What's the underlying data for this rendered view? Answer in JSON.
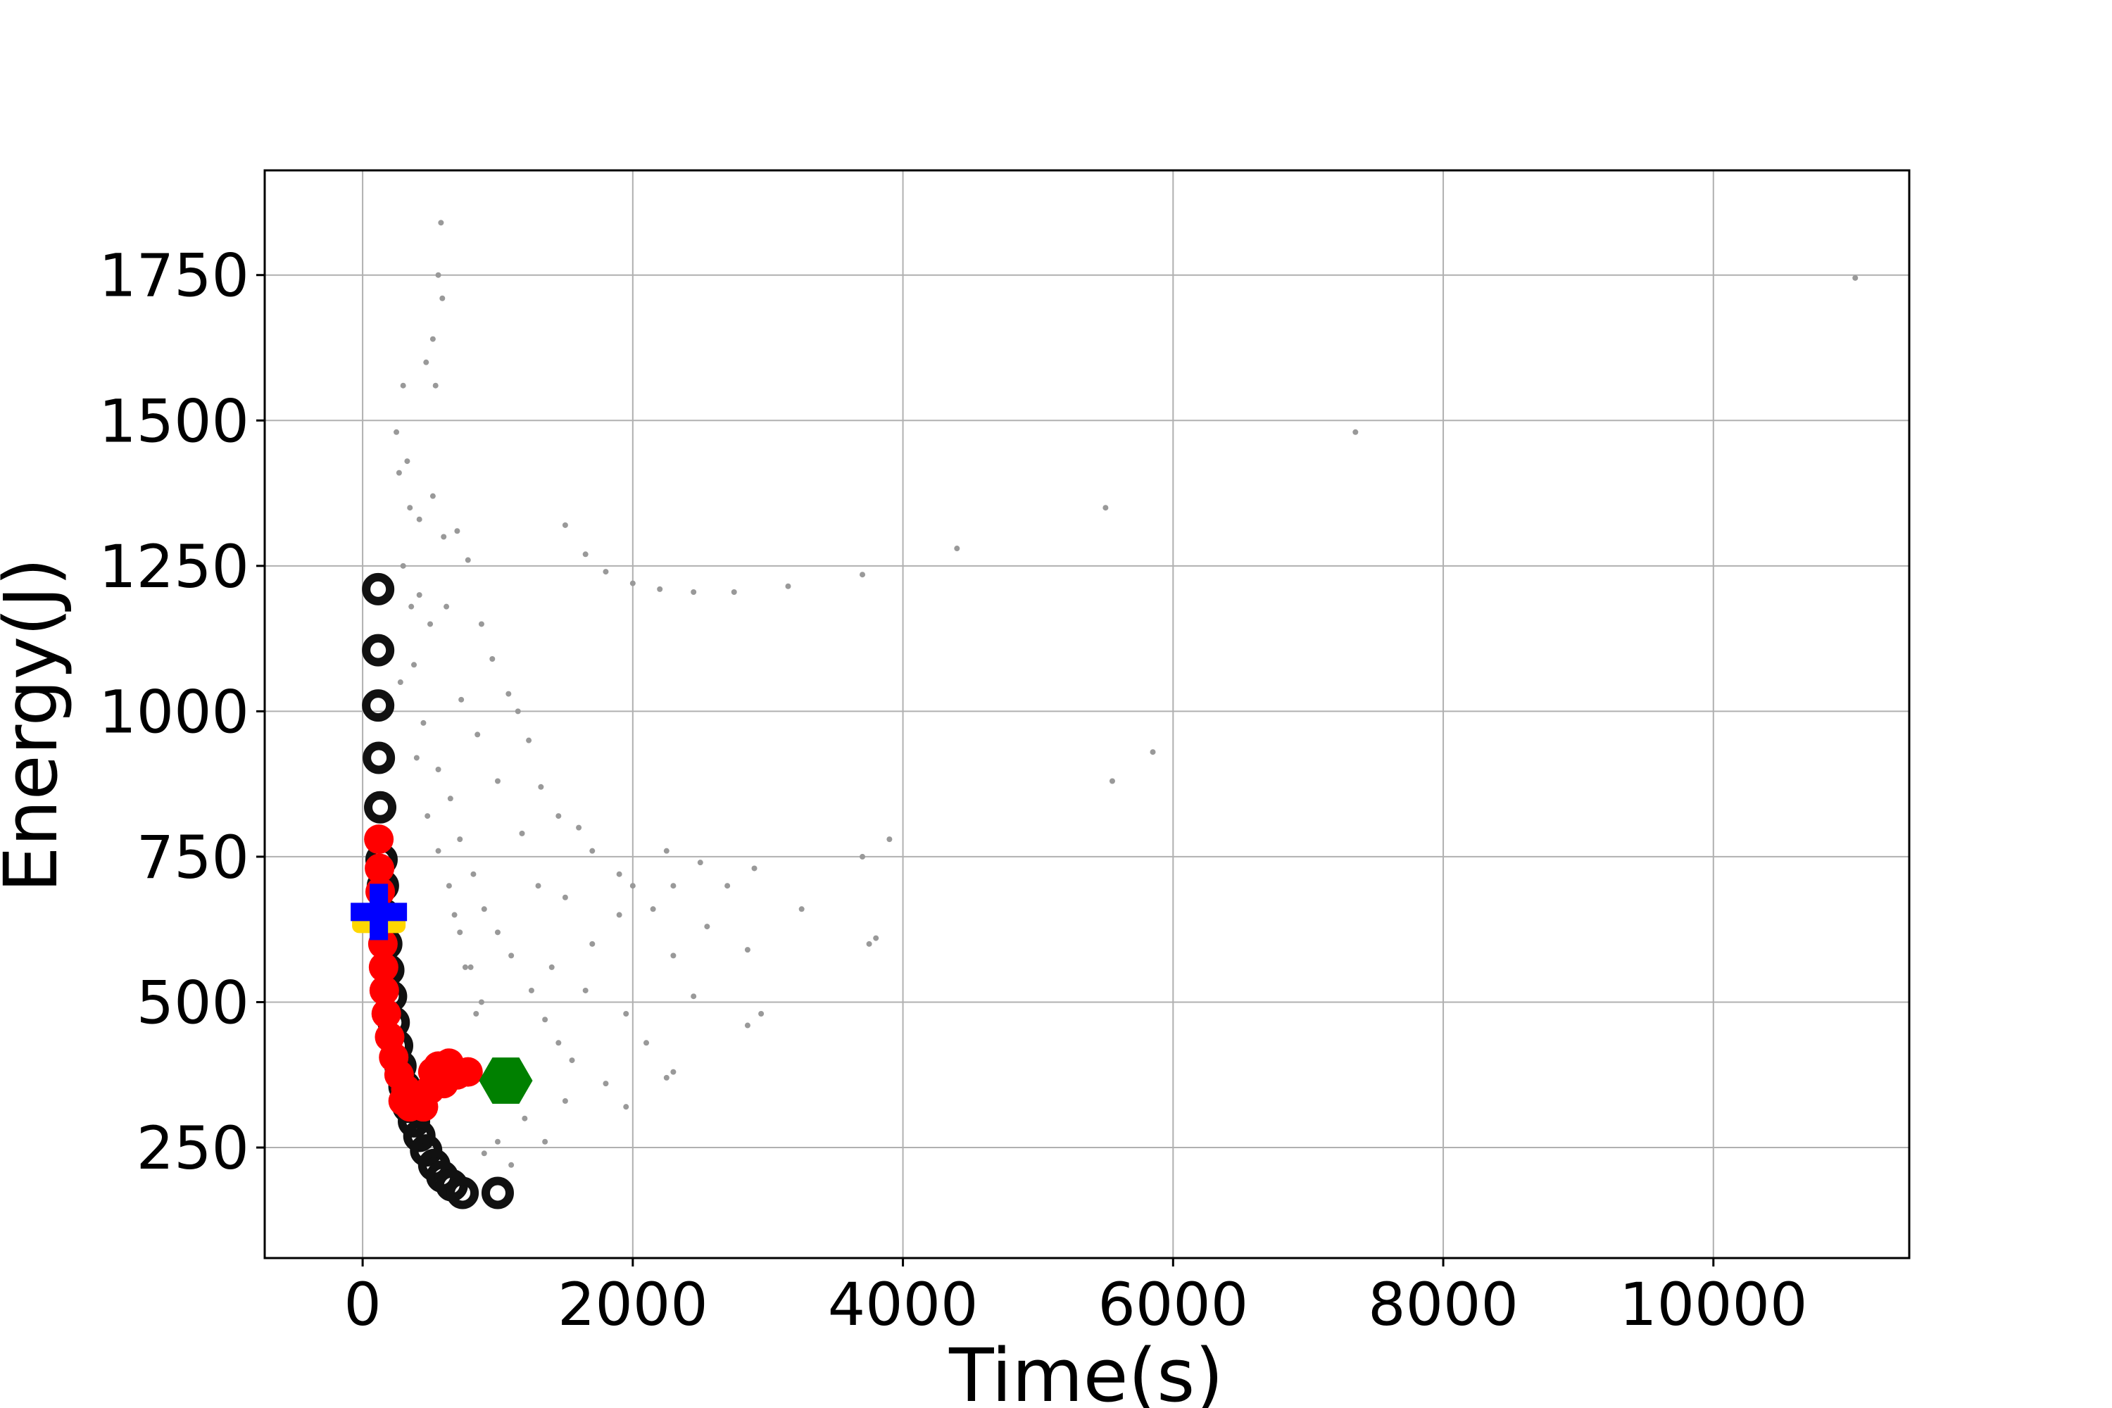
{
  "chart_data": {
    "type": "scatter",
    "title": "",
    "xlabel": "Time(s)",
    "ylabel": "Energy(J)",
    "xlim": [
      -725,
      11450
    ],
    "ylim": [
      60,
      1930
    ],
    "xticks": [
      0,
      2000,
      4000,
      6000,
      8000,
      10000
    ],
    "yticks": [
      250,
      500,
      750,
      1000,
      1250,
      1500,
      1750
    ],
    "grid": true,
    "legend": "none",
    "colors": {
      "background": "#ffffff",
      "grid": "#b0b0b0",
      "cloud": "#999999",
      "pareto": "#111111",
      "path": "#ff0000",
      "start": "#0000ff",
      "start_under": "#ffd700",
      "end": "#008000"
    },
    "series": [
      {
        "marker": "small-dot",
        "color": "#999999",
        "points": [
          [
            580,
            1840
          ],
          [
            560,
            1750
          ],
          [
            590,
            1710
          ],
          [
            520,
            1640
          ],
          [
            470,
            1600
          ],
          [
            300,
            1560
          ],
          [
            250,
            1480
          ],
          [
            540,
            1560
          ],
          [
            330,
            1430
          ],
          [
            270,
            1410
          ],
          [
            600,
            1300
          ],
          [
            350,
            1350
          ],
          [
            420,
            1330
          ],
          [
            520,
            1370
          ],
          [
            700,
            1310
          ],
          [
            780,
            1260
          ],
          [
            620,
            1180
          ],
          [
            880,
            1150
          ],
          [
            960,
            1090
          ],
          [
            730,
            1020
          ],
          [
            1080,
            1030
          ],
          [
            1150,
            1000
          ],
          [
            850,
            960
          ],
          [
            1230,
            950
          ],
          [
            1000,
            880
          ],
          [
            1320,
            870
          ],
          [
            1450,
            820
          ],
          [
            1180,
            790
          ],
          [
            1600,
            800
          ],
          [
            1700,
            760
          ],
          [
            1900,
            720
          ],
          [
            1300,
            700
          ],
          [
            1500,
            680
          ],
          [
            2000,
            700
          ],
          [
            2250,
            760
          ],
          [
            2300,
            700
          ],
          [
            2500,
            740
          ],
          [
            2700,
            700
          ],
          [
            2900,
            730
          ],
          [
            3250,
            660
          ],
          [
            1700,
            600
          ],
          [
            1900,
            650
          ],
          [
            2150,
            660
          ],
          [
            2300,
            580
          ],
          [
            2550,
            630
          ],
          [
            2850,
            590
          ],
          [
            3700,
            750
          ],
          [
            3900,
            780
          ],
          [
            3800,
            610
          ],
          [
            3750,
            600
          ],
          [
            1400,
            560
          ],
          [
            1650,
            520
          ],
          [
            1950,
            480
          ],
          [
            2450,
            510
          ],
          [
            2850,
            460
          ],
          [
            2950,
            480
          ],
          [
            2100,
            430
          ],
          [
            2300,
            380
          ],
          [
            2250,
            370
          ],
          [
            1800,
            360
          ],
          [
            1950,
            320
          ],
          [
            1500,
            330
          ],
          [
            1200,
            300
          ],
          [
            1000,
            260
          ],
          [
            900,
            240
          ],
          [
            1350,
            260
          ],
          [
            1100,
            220
          ],
          [
            1500,
            1320
          ],
          [
            1650,
            1270
          ],
          [
            1800,
            1240
          ],
          [
            2000,
            1220
          ],
          [
            2200,
            1210
          ],
          [
            2450,
            1205
          ],
          [
            2750,
            1205
          ],
          [
            3150,
            1215
          ],
          [
            3700,
            1235
          ],
          [
            4400,
            1280
          ],
          [
            5500,
            1350
          ],
          [
            7350,
            1480
          ],
          [
            11050,
            1745
          ],
          [
            5550,
            880
          ],
          [
            5850,
            930
          ],
          [
            420,
            1200
          ],
          [
            500,
            1150
          ],
          [
            380,
            1080
          ],
          [
            450,
            980
          ],
          [
            560,
            900
          ],
          [
            650,
            850
          ],
          [
            720,
            780
          ],
          [
            820,
            720
          ],
          [
            900,
            660
          ],
          [
            1000,
            620
          ],
          [
            1100,
            580
          ],
          [
            1250,
            520
          ],
          [
            1350,
            470
          ],
          [
            1450,
            430
          ],
          [
            1550,
            400
          ],
          [
            680,
            650
          ],
          [
            760,
            560
          ],
          [
            840,
            480
          ],
          [
            300,
            1250
          ],
          [
            360,
            1180
          ],
          [
            280,
            1050
          ],
          [
            400,
            920
          ],
          [
            480,
            820
          ],
          [
            560,
            760
          ],
          [
            640,
            700
          ],
          [
            720,
            620
          ],
          [
            800,
            560
          ],
          [
            880,
            500
          ]
        ]
      },
      {
        "marker": "ring",
        "color": "#111111",
        "points": [
          [
            115,
            1210
          ],
          [
            115,
            1105
          ],
          [
            115,
            1010
          ],
          [
            120,
            920
          ],
          [
            130,
            835
          ],
          [
            140,
            745
          ],
          [
            150,
            700
          ],
          [
            160,
            650
          ],
          [
            175,
            600
          ],
          [
            190,
            555
          ],
          [
            210,
            510
          ],
          [
            230,
            465
          ],
          [
            255,
            425
          ],
          [
            280,
            390
          ],
          [
            310,
            355
          ],
          [
            340,
            320
          ],
          [
            380,
            295
          ],
          [
            420,
            270
          ],
          [
            470,
            245
          ],
          [
            530,
            220
          ],
          [
            590,
            200
          ],
          [
            660,
            185
          ],
          [
            740,
            172
          ],
          [
            1000,
            172
          ]
        ]
      },
      {
        "marker": "disc",
        "color": "#ff0000",
        "points": [
          [
            120,
            780
          ],
          [
            125,
            730
          ],
          [
            130,
            690
          ],
          [
            140,
            650
          ],
          [
            150,
            600
          ],
          [
            155,
            560
          ],
          [
            160,
            520
          ],
          [
            175,
            480
          ],
          [
            200,
            440
          ],
          [
            230,
            405
          ],
          [
            270,
            375
          ],
          [
            320,
            350
          ],
          [
            380,
            335
          ],
          [
            440,
            340
          ],
          [
            500,
            350
          ],
          [
            520,
            380
          ],
          [
            560,
            390
          ],
          [
            640,
            395
          ],
          [
            700,
            375
          ],
          [
            780,
            380
          ],
          [
            600,
            360
          ],
          [
            450,
            320
          ],
          [
            350,
            320
          ],
          [
            300,
            330
          ]
        ]
      },
      {
        "marker": "cross",
        "color": "#0000ff",
        "under_color": "#ffd700",
        "points": [
          [
            120,
            655
          ]
        ]
      },
      {
        "marker": "hexagon",
        "color": "#008000",
        "points": [
          [
            1060,
            365
          ]
        ]
      }
    ]
  }
}
